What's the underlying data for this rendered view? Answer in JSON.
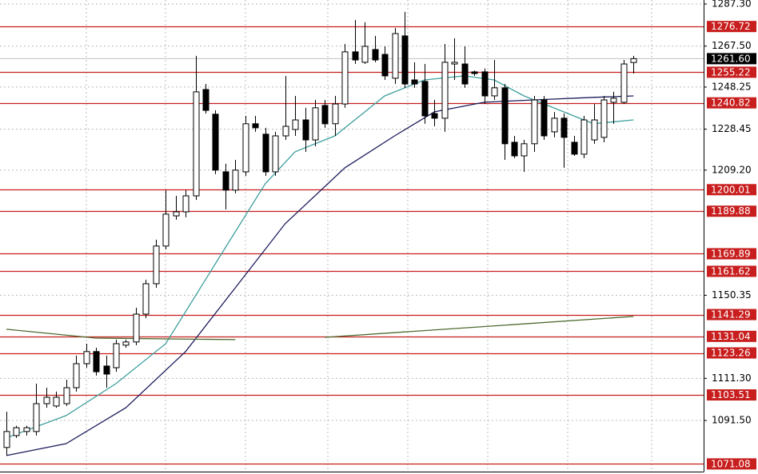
{
  "chart_data": {
    "type": "candlestick",
    "ylim": [
      1067.46,
      1289.18
    ],
    "yticks": [
      {
        "value": 1287.3,
        "label": "1287.30"
      },
      {
        "value": 1267.5,
        "label": "1267.50"
      },
      1248.25,
      1228.45,
      {
        "value": 1209.2,
        "label": "1209.20"
      },
      1150.35,
      {
        "value": 1111.3,
        "label": "1111.30"
      },
      {
        "value": 1091.5,
        "label": "1091.50"
      }
    ],
    "grid": true,
    "up_color": "#ffffff",
    "down_color": "#000000",
    "level_color": "#c81e1e",
    "levels": [
      1276.72,
      1255.22,
      1240.82,
      1200.01,
      1189.88,
      1169.89,
      1161.62,
      1141.29,
      1131.04,
      1123.26,
      1103.51,
      1071.08
    ],
    "current_price": {
      "value": 1261.6,
      "label": "1261.60"
    },
    "candles": {
      "open": [
        1078.8,
        1084.4,
        1086.3,
        1086.3,
        1099.4,
        1098.3,
        1099.4,
        1106.9,
        1118.2,
        1123.9,
        1117.1,
        1116.3,
        1126.9,
        1128.4,
        1141.5,
        1155.8,
        1173.5,
        1187.7,
        1189.6,
        1197.1,
        1247.1,
        1235.5,
        1208.4,
        1199.8,
        1208.4,
        1231.0,
        1226.1,
        1208.4,
        1225.3,
        1228.3,
        1232.8,
        1223.4,
        1239.6,
        1231.0,
        1240.3,
        1264.8,
        1259.9,
        1265.9,
        1263.6,
        1252.4,
        1272.3,
        1251.6,
        1250.9,
        1235.8,
        1233.6,
        1259.1,
        1259.1,
        1255.4,
        1255.4,
        1244.1,
        1247.9,
        1222.3,
        1215.9,
        1221.6,
        1242.2,
        1227.2,
        1233.6,
        1222.3,
        1216.7,
        1223.4,
        1224.6,
        1241.1,
        1241.1,
        1259.8
      ],
      "high": [
        1095.6,
        1089.0,
        1089.0,
        1108.8,
        1106.9,
        1105.1,
        1110.7,
        1122.0,
        1127.6,
        1125.7,
        1122.0,
        1129.5,
        1129.5,
        1144.5,
        1157.7,
        1176.5,
        1199.8,
        1197.1,
        1199.8,
        1262.9,
        1249.7,
        1237.3,
        1212.2,
        1214.0,
        1234.7,
        1234.7,
        1229.1,
        1227.2,
        1253.5,
        1244.1,
        1238.5,
        1242.2,
        1242.2,
        1244.1,
        1268.5,
        1279.8,
        1278.7,
        1272.3,
        1267.4,
        1276.0,
        1283.6,
        1259.9,
        1259.1,
        1242.2,
        1268.5,
        1271.2,
        1267.4,
        1256.0,
        1257.0,
        1261.0,
        1249.7,
        1225.3,
        1223.4,
        1244.1,
        1244.1,
        1236.5,
        1235.8,
        1225.3,
        1234.7,
        1240.3,
        1244.1,
        1246.0,
        1261.0,
        1262.9
      ],
      "low": [
        1075.0,
        1083.3,
        1084.4,
        1084.4,
        1097.5,
        1097.5,
        1098.3,
        1105.1,
        1116.3,
        1112.6,
        1106.9,
        1114.4,
        1125.7,
        1126.9,
        1139.6,
        1153.9,
        1172.0,
        1185.9,
        1187.0,
        1195.2,
        1235.8,
        1207.3,
        1190.7,
        1198.3,
        1206.5,
        1227.2,
        1206.5,
        1206.5,
        1223.4,
        1225.3,
        1217.8,
        1220.4,
        1229.1,
        1225.3,
        1238.5,
        1259.1,
        1259.1,
        1259.9,
        1251.6,
        1249.7,
        1247.9,
        1247.9,
        1231.0,
        1229.8,
        1227.2,
        1251.6,
        1247.9,
        1253.5,
        1240.3,
        1242.2,
        1214.0,
        1214.8,
        1208.4,
        1217.8,
        1223.4,
        1224.6,
        1210.3,
        1215.9,
        1214.8,
        1221.6,
        1222.3,
        1231.0,
        1240.3,
        1254.6
      ],
      "close": [
        1086.3,
        1088.1,
        1088.1,
        1099.4,
        1102.4,
        1102.4,
        1106.9,
        1118.2,
        1123.9,
        1114.4,
        1113.3,
        1127.6,
        1128.4,
        1141.5,
        1155.8,
        1173.5,
        1188.5,
        1189.6,
        1197.1,
        1246.0,
        1237.3,
        1209.2,
        1199.8,
        1209.2,
        1231.0,
        1229.1,
        1208.4,
        1225.3,
        1229.8,
        1232.8,
        1223.4,
        1238.5,
        1231.0,
        1240.3,
        1264.8,
        1261.0,
        1267.4,
        1261.0,
        1253.5,
        1273.4,
        1249.7,
        1249.7,
        1234.7,
        1233.6,
        1259.9,
        1259.9,
        1249.7,
        1254.6,
        1244.1,
        1247.9,
        1221.6,
        1215.9,
        1221.6,
        1242.2,
        1225.3,
        1233.6,
        1224.6,
        1216.7,
        1232.8,
        1232.8,
        1242.2,
        1243.0,
        1259.1,
        1261.6
      ]
    },
    "moving_averages": [
      {
        "color": "#3f9f9f",
        "x": [
          0,
          6,
          11,
          16,
          21,
          26,
          29,
          33,
          38,
          42,
          46,
          49,
          52,
          57,
          59,
          63
        ],
        "values": [
          1083.3,
          1093.8,
          1108.8,
          1127.6,
          1165.2,
          1202.8,
          1217.8,
          1225.3,
          1244.1,
          1251.6,
          1253.5,
          1251.6,
          1244.1,
          1234.7,
          1231.0,
          1232.8
        ]
      },
      {
        "color": "#1c1c5c",
        "x": [
          0,
          6,
          12,
          18,
          23,
          28,
          34,
          39,
          43,
          48,
          53,
          59,
          63
        ],
        "values": [
          1075.0,
          1080.6,
          1097.5,
          1123.9,
          1153.9,
          1184.0,
          1210.3,
          1225.3,
          1236.6,
          1241.1,
          1242.2,
          1243.4,
          1244.1
        ]
      },
      {
        "color": "#4d6b2f",
        "x": [
          0,
          9,
          23,
          28,
          32,
          63
        ],
        "values": [
          1134.4,
          1130.2,
          1129.5,
          null,
          1130.6,
          1140.4
        ]
      }
    ]
  }
}
